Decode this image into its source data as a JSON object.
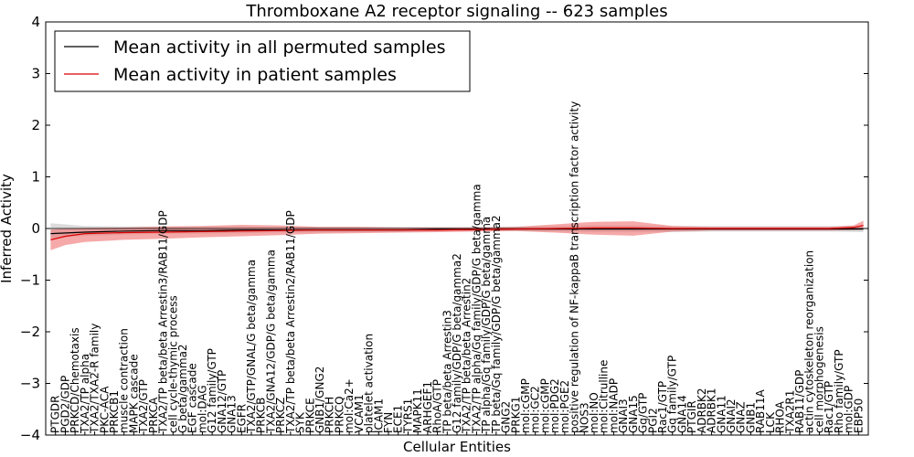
{
  "chart_data": {
    "type": "line",
    "title": "Thromboxane A2 receptor signaling -- 623 samples",
    "xlabel": "Cellular Entities",
    "ylabel": "Inferred Activity",
    "ylim": [
      -4,
      4
    ],
    "yticks": [
      -4,
      -3,
      -2,
      -1,
      0,
      1,
      2,
      3,
      4
    ],
    "ytick_labels": [
      "−4",
      "−3",
      "−2",
      "−1",
      "0",
      "1",
      "2",
      "3",
      "4"
    ],
    "grid": false,
    "legend_position": "top-left",
    "zero_line": 0,
    "colors": {
      "permuted": "#000000",
      "permuted_band": "#bdbdbd",
      "patient": "#dd0000",
      "patient_band": "#f07070"
    },
    "categories": [
      "PTGDR",
      "PGD2/GDP",
      "PRKCD/Chemotaxis",
      "TXA2/TP alpha",
      "TXA2/TXA2-R family",
      "PKC-ACA",
      "PRKCB1",
      "muscle contraction",
      "MAPK cascade",
      "TXA2/GTP",
      "PRKCA",
      "TXA2/TP beta/beta Arrestin3/RAB11/GDP",
      "cell cycle-thymic process",
      "G beta/gamma2",
      "EGF cascade",
      "mol:DAG",
      "G12 family/GTP",
      "GNA12/GTP",
      "GNA13",
      "EGFR",
      "TXA2/GTP/GNAL/G beta/gamma",
      "PRKCB",
      "TXA2/GNA12/GDP/G beta/gamma",
      "PRKCZ",
      "TXA2/TP beta/beta Arrestin2/RAB11/GDP",
      "SYK",
      "PRKCE",
      "GNB1/GNG2",
      "PRKCH",
      "PRKCQ",
      "mol:Ca2+",
      "VCAM1",
      "platelet activation",
      "ICAM1",
      "FYN",
      "ECE1",
      "TYRS1",
      "MAPK11",
      "ARHGEF1",
      "RhoA/GTP",
      "TP beta/beta Arrestin3",
      "G12 family/GDP/G beta/gamma2",
      "TXA2/TP beta/beta Arrestin2",
      "TXA2/TP alpha/Gq family/GDP/G beta/gamma",
      "TP alpha/Gq family/GDP/G beta/gamma",
      "TP beta/Gq family/GDP/G beta/gamma2",
      "GNG2",
      "PRKG1",
      "mol:cGMP",
      "mol:GC2",
      "mol:cGMP",
      "mol:PDG2",
      "mol:PGE2",
      "positive regulation of NF-kappaB transcription factor activity",
      "NOS3",
      "mol:NO",
      "mol:Citrulline",
      "mol:NADP",
      "GNAI3",
      "GNA15",
      "Gq/GTP",
      "PGI2",
      "Rac1/GTP",
      "Gq family/GTP",
      "GNA14",
      "PTGIR",
      "ADRBK2",
      "ADRBK1",
      "GNA11",
      "GNAI2",
      "GNAZ",
      "GNB1",
      "RAB11A",
      "LCK",
      "RHOA",
      "TXA2R1",
      "RAB11/GDP",
      "actin cytoskeleton reorganization",
      "cell morphogenesis",
      "Rac1/GTP",
      "Rho family/GTP",
      "mol:GDP",
      "EBP50"
    ],
    "x_label_positions": [
      1,
      2,
      3,
      4,
      5,
      6,
      7,
      8,
      9,
      10,
      11,
      12,
      13,
      14,
      15,
      16,
      17,
      18,
      19,
      20,
      21,
      22,
      23,
      24,
      25,
      26,
      27,
      28,
      29,
      30,
      31,
      32,
      33,
      34,
      35,
      36,
      37,
      38,
      39,
      40,
      41,
      42,
      43,
      44,
      45,
      46,
      47,
      48,
      49,
      50,
      51,
      52,
      53,
      54,
      55,
      56,
      57,
      58,
      59,
      60,
      61,
      62,
      63,
      64,
      65,
      66,
      67,
      68,
      69,
      70,
      71,
      72,
      73,
      74,
      75,
      76,
      77,
      78,
      79,
      80,
      81,
      82,
      83
    ],
    "xlim": [
      0,
      84
    ],
    "series": [
      {
        "name": "Mean activity in all permuted samples",
        "role": "permuted",
        "x": [
          0.5,
          4,
          8,
          12,
          16,
          20,
          24,
          28,
          32,
          36,
          40,
          44,
          48,
          52,
          56,
          60,
          64,
          68,
          72,
          76,
          80,
          83.5
        ],
        "y": [
          -0.1,
          -0.07,
          -0.05,
          -0.04,
          -0.04,
          -0.03,
          -0.03,
          -0.03,
          -0.03,
          -0.03,
          -0.02,
          -0.02,
          -0.01,
          -0.01,
          -0.01,
          -0.01,
          -0.01,
          -0.01,
          -0.01,
          -0.01,
          -0.01,
          -0.01
        ],
        "band_lower": [
          -0.2,
          -0.14,
          -0.12,
          -0.1,
          -0.1,
          -0.09,
          -0.08,
          -0.08,
          -0.07,
          -0.07,
          -0.06,
          -0.05,
          -0.05,
          -0.06,
          -0.07,
          -0.07,
          -0.07,
          -0.06,
          -0.06,
          -0.06,
          -0.06,
          -0.07
        ],
        "band_upper": [
          0.1,
          0.05,
          0.04,
          0.04,
          0.04,
          0.04,
          0.03,
          0.03,
          0.03,
          0.03,
          0.03,
          0.03,
          0.04,
          0.05,
          0.06,
          0.06,
          0.05,
          0.05,
          0.05,
          0.05,
          0.05,
          0.05
        ]
      },
      {
        "name": "Mean activity in patient samples",
        "role": "patient",
        "x": [
          0.5,
          2,
          4,
          8,
          12,
          16,
          20,
          24,
          28,
          32,
          36,
          40,
          44,
          48,
          52,
          56,
          60,
          64,
          68,
          72,
          76,
          80,
          82.5,
          83.5
        ],
        "y": [
          -0.22,
          -0.15,
          -0.1,
          -0.08,
          -0.07,
          -0.06,
          -0.05,
          -0.04,
          -0.03,
          -0.03,
          -0.03,
          -0.03,
          -0.02,
          -0.01,
          0.0,
          0.01,
          0.01,
          0.0,
          0.0,
          0.0,
          0.0,
          0.0,
          0.02,
          0.06
        ],
        "band_lower": [
          -0.42,
          -0.32,
          -0.26,
          -0.22,
          -0.2,
          -0.17,
          -0.15,
          -0.13,
          -0.1,
          -0.09,
          -0.08,
          -0.07,
          -0.06,
          -0.05,
          -0.08,
          -0.12,
          -0.14,
          -0.06,
          -0.04,
          -0.04,
          -0.04,
          -0.04,
          -0.03,
          -0.02
        ],
        "band_upper": [
          -0.02,
          0.0,
          0.01,
          0.02,
          0.04,
          0.05,
          0.07,
          0.06,
          0.03,
          0.03,
          0.02,
          0.02,
          0.02,
          0.03,
          0.08,
          0.13,
          0.14,
          0.05,
          0.03,
          0.03,
          0.03,
          0.03,
          0.06,
          0.15
        ]
      }
    ]
  }
}
